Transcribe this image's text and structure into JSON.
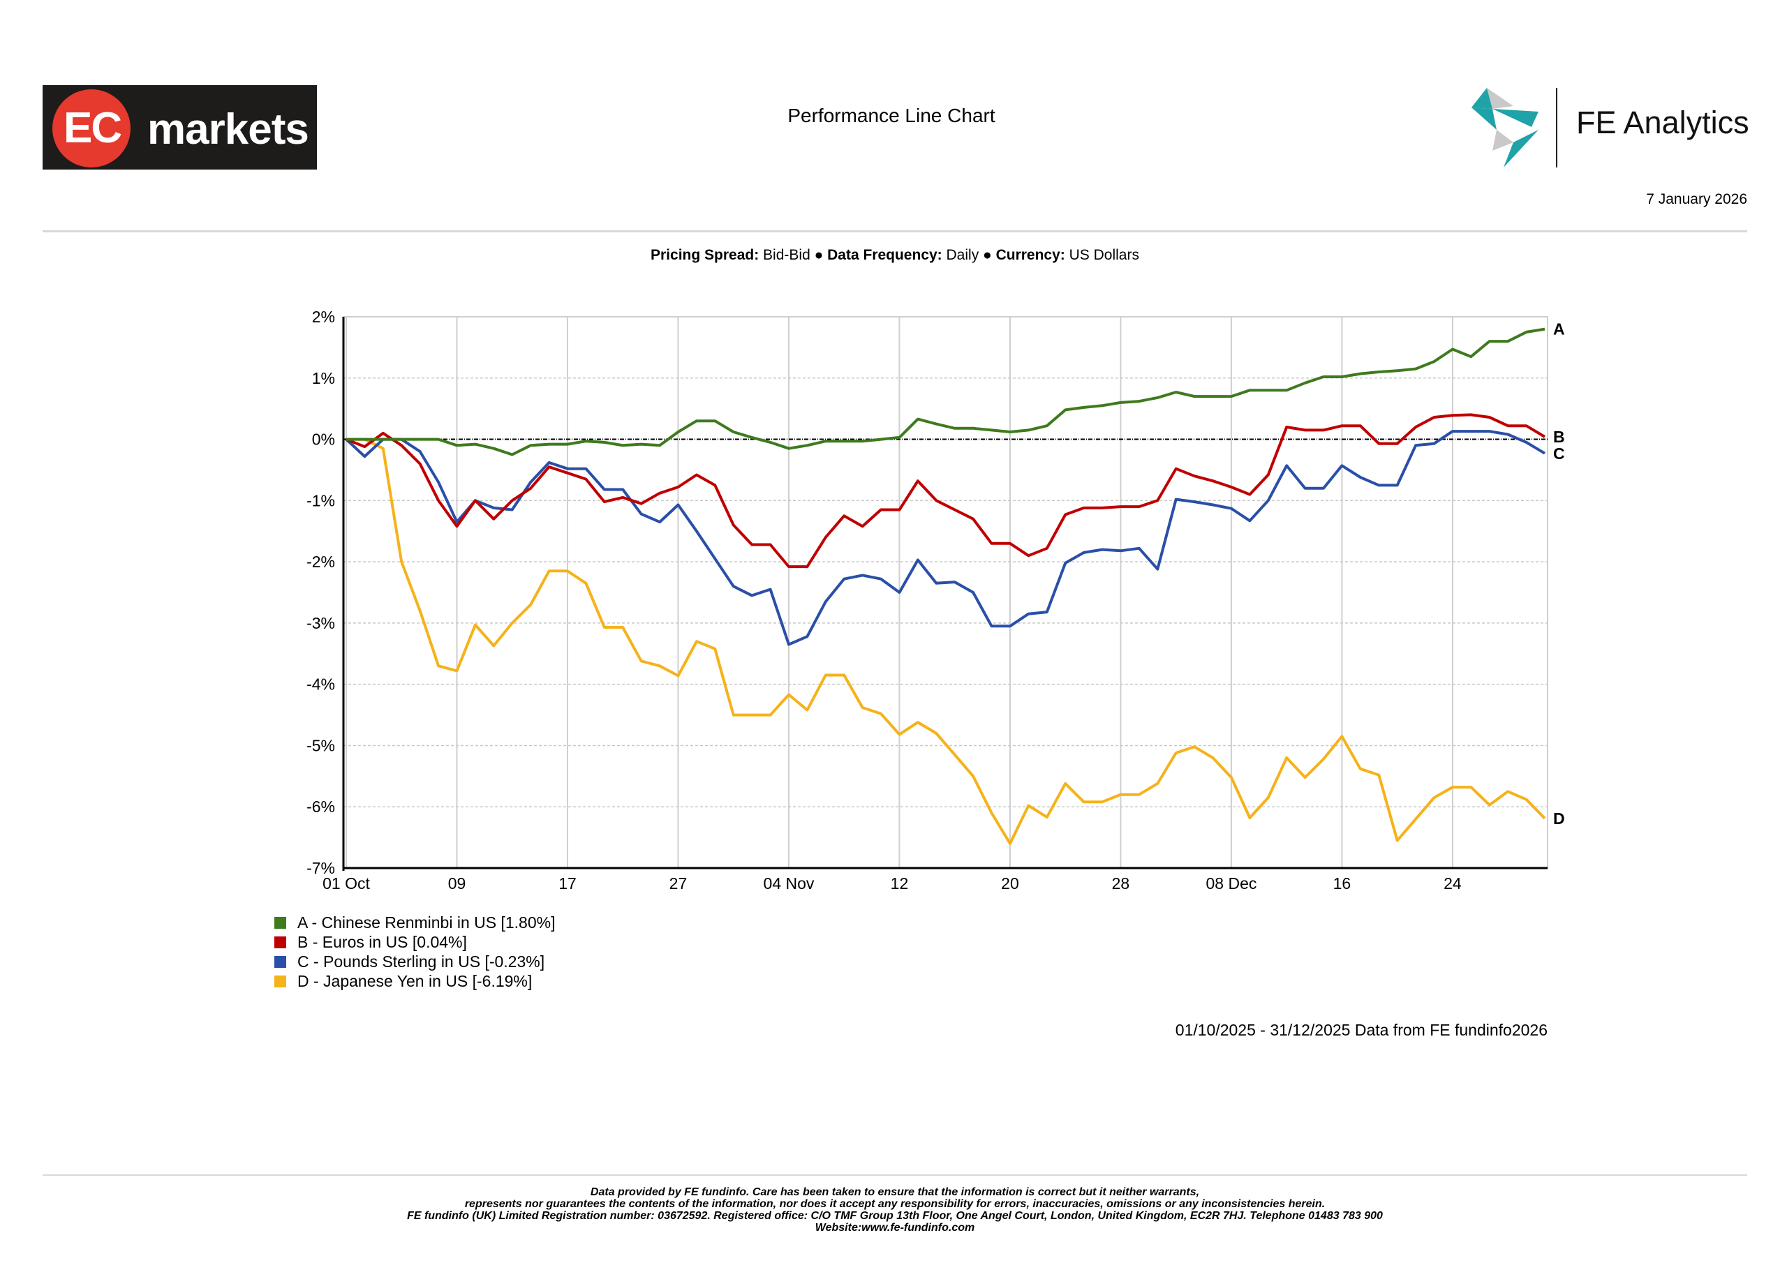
{
  "header": {
    "left_logo": {
      "text_ec": "EC",
      "text_markets": "markets"
    },
    "title": "Performance Line Chart",
    "right_logo": {
      "text": "FE Analytics"
    },
    "date": "7 January 2026"
  },
  "meta": {
    "pricing_label": "Pricing Spread:",
    "pricing_value": "Bid-Bid",
    "frequency_label": "Data Frequency:",
    "frequency_value": "Daily",
    "currency_label": "Currency:",
    "currency_value": "US Dollars",
    "separator": "●"
  },
  "chart_data": {
    "type": "line",
    "title": "Performance Line Chart",
    "xlabel": "",
    "ylabel": "",
    "ylim": [
      -7,
      2
    ],
    "yticks": [
      2,
      1,
      0,
      -1,
      -2,
      -3,
      -4,
      -5,
      -6,
      -7
    ],
    "ytick_labels": [
      "2%",
      "1%",
      "0%",
      "-1%",
      "-2%",
      "-3%",
      "-4%",
      "-5%",
      "-6%",
      "-7%"
    ],
    "x_count": 66,
    "x_note": "daily business days 01/10/2025 - 31/12/2025",
    "xticks": [
      {
        "index": 0,
        "label": "01 Oct"
      },
      {
        "index": 6,
        "label": "09"
      },
      {
        "index": 12,
        "label": "17"
      },
      {
        "index": 18,
        "label": "27"
      },
      {
        "index": 24,
        "label": "04 Nov"
      },
      {
        "index": 30,
        "label": "12"
      },
      {
        "index": 36,
        "label": "20"
      },
      {
        "index": 42,
        "label": "28"
      },
      {
        "index": 48,
        "label": "08 Dec"
      },
      {
        "index": 54,
        "label": "16"
      },
      {
        "index": 60,
        "label": "24"
      }
    ],
    "grid": true,
    "legend_position": "bottom-left",
    "series": [
      {
        "key": "A",
        "name": "A - Chinese Renminbi in US [1.80%]",
        "color": "#3f7a1e",
        "values": [
          0,
          0,
          0,
          0,
          0,
          0,
          -0.1,
          -0.08,
          -0.15,
          -0.25,
          -0.1,
          -0.08,
          -0.08,
          -0.03,
          -0.05,
          -0.1,
          -0.08,
          -0.1,
          0.12,
          0.3,
          0.3,
          0.12,
          0.03,
          -0.05,
          -0.15,
          -0.1,
          -0.03,
          -0.03,
          -0.03,
          0,
          0.03,
          0.33,
          0.25,
          0.18,
          0.18,
          0.15,
          0.12,
          0.15,
          0.22,
          0.48,
          0.52,
          0.55,
          0.6,
          0.62,
          0.68,
          0.77,
          0.7,
          0.7,
          0.7,
          0.8,
          0.8,
          0.8,
          0.92,
          1.02,
          1.02,
          1.07,
          1.1,
          1.12,
          1.15,
          1.27,
          1.47,
          1.35,
          1.6,
          1.6,
          1.75,
          1.8
        ]
      },
      {
        "key": "B",
        "name": "B - Euros in US [0.04%]",
        "color": "#c00000",
        "values": [
          0,
          -0.12,
          0.1,
          -0.1,
          -0.4,
          -1.0,
          -1.42,
          -1.0,
          -1.3,
          -1.0,
          -0.8,
          -0.45,
          -0.55,
          -0.65,
          -1.02,
          -0.95,
          -1.05,
          -0.88,
          -0.78,
          -0.58,
          -0.75,
          -1.4,
          -1.72,
          -1.72,
          -2.08,
          -2.08,
          -1.6,
          -1.25,
          -1.42,
          -1.15,
          -1.15,
          -0.68,
          -1.0,
          -1.15,
          -1.3,
          -1.7,
          -1.7,
          -1.9,
          -1.78,
          -1.23,
          -1.12,
          -1.12,
          -1.1,
          -1.1,
          -1.0,
          -0.48,
          -0.6,
          -0.68,
          -0.78,
          -0.9,
          -0.58,
          0.2,
          0.15,
          0.15,
          0.22,
          0.22,
          -0.07,
          -0.07,
          0.2,
          0.36,
          0.39,
          0.4,
          0.36,
          0.22,
          0.22,
          0.04
        ]
      },
      {
        "key": "C",
        "name": "C - Pounds Sterling in US [-0.23%]",
        "color": "#2a4fa8",
        "values": [
          0,
          -0.28,
          0,
          0,
          -0.2,
          -0.7,
          -1.35,
          -1.0,
          -1.12,
          -1.15,
          -0.7,
          -0.38,
          -0.48,
          -0.48,
          -0.82,
          -0.82,
          -1.22,
          -1.35,
          -1.07,
          -1.5,
          -1.95,
          -2.4,
          -2.55,
          -2.45,
          -3.35,
          -3.22,
          -2.65,
          -2.28,
          -2.22,
          -2.28,
          -2.5,
          -1.97,
          -2.35,
          -2.33,
          -2.5,
          -3.05,
          -3.05,
          -2.85,
          -2.82,
          -2.02,
          -1.85,
          -1.8,
          -1.82,
          -1.78,
          -2.12,
          -0.98,
          -1.02,
          -1.07,
          -1.13,
          -1.33,
          -1.0,
          -0.43,
          -0.8,
          -0.8,
          -0.43,
          -0.62,
          -0.75,
          -0.75,
          -0.1,
          -0.07,
          0.13,
          0.13,
          0.13,
          0.08,
          -0.05,
          -0.23
        ]
      },
      {
        "key": "D",
        "name": "D - Japanese Yen in US [-6.19%]",
        "color": "#f5b21a",
        "values": [
          0,
          0,
          -0.15,
          -2.0,
          -2.8,
          -3.7,
          -3.78,
          -3.03,
          -3.37,
          -3.0,
          -2.7,
          -2.15,
          -2.15,
          -2.35,
          -3.07,
          -3.07,
          -3.62,
          -3.7,
          -3.86,
          -3.3,
          -3.42,
          -4.5,
          -4.5,
          -4.5,
          -4.17,
          -4.42,
          -3.85,
          -3.85,
          -4.38,
          -4.48,
          -4.82,
          -4.62,
          -4.8,
          -5.15,
          -5.5,
          -6.1,
          -6.6,
          -5.98,
          -6.17,
          -5.62,
          -5.92,
          -5.92,
          -5.8,
          -5.8,
          -5.62,
          -5.12,
          -5.02,
          -5.2,
          -5.52,
          -6.18,
          -5.85,
          -5.2,
          -5.52,
          -5.22,
          -4.85,
          -5.38,
          -5.48,
          -6.55,
          -6.2,
          -5.85,
          -5.68,
          -5.68,
          -5.97,
          -5.75,
          -5.88,
          -6.19
        ]
      }
    ]
  },
  "range_text": "01/10/2025 - 31/12/2025 Data from FE fundinfo2026",
  "footer": {
    "lines": [
      "Data provided by FE fundinfo. Care has been taken to ensure that the information is correct but it neither warrants,",
      "represents nor guarantees the contents of the information, nor does it accept any responsibility for errors, inaccuracies, omissions or any inconsistencies herein.",
      "FE fundinfo (UK) Limited Registration number: 03672592. Registered office: C/O TMF Group 13th Floor, One Angel Court, London, United Kingdom, EC2R 7HJ. Telephone 01483 783 900",
      "Website:www.fe-fundinfo.com"
    ]
  }
}
